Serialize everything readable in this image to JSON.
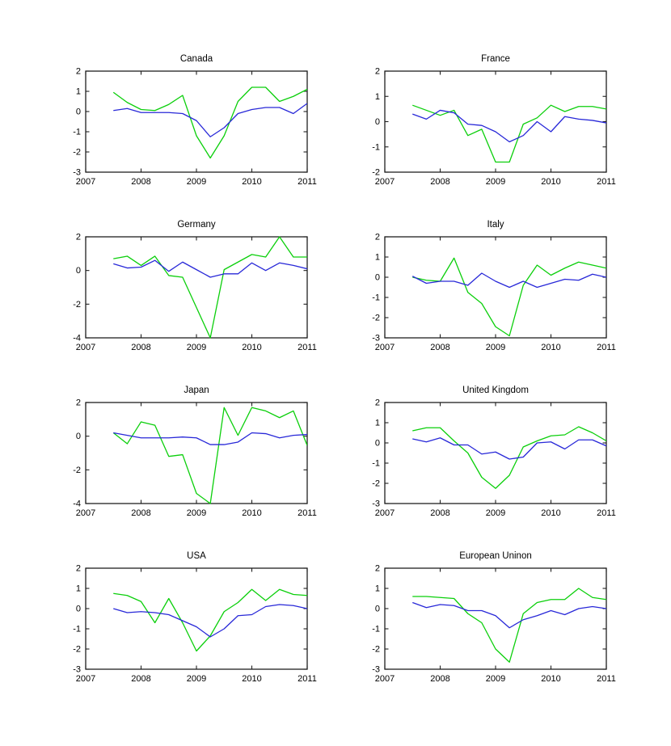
{
  "figure": {
    "background": "#ffffff",
    "axis_color": "#1f1f1f",
    "text_color": "#000000"
  },
  "chart_data": [
    {
      "type": "line",
      "title": "Canada",
      "x": [
        2007.5,
        2007.75,
        2008.0,
        2008.25,
        2008.5,
        2008.75,
        2009.0,
        2009.25,
        2009.5,
        2009.75,
        2010.0,
        2010.25,
        2010.5,
        2010.75,
        2011.0
      ],
      "xlim": [
        2007,
        2011
      ],
      "ylim": [
        -3,
        2
      ],
      "xticks": [
        2007,
        2008,
        2009,
        2010,
        2011
      ],
      "yticks": [
        -3,
        -2,
        -1,
        0,
        1,
        2
      ],
      "grid": false,
      "legend": null,
      "series": [
        {
          "name": "green-series",
          "color": "#0bcf0b",
          "values": [
            0.95,
            0.45,
            0.1,
            0.05,
            0.35,
            0.8,
            -1.2,
            -2.3,
            -1.2,
            0.5,
            1.2,
            1.2,
            0.5,
            0.75,
            1.1
          ]
        },
        {
          "name": "blue-series",
          "color": "#2828d8",
          "values": [
            0.05,
            0.15,
            -0.05,
            -0.05,
            -0.05,
            -0.1,
            -0.45,
            -1.25,
            -0.8,
            -0.1,
            0.1,
            0.2,
            0.2,
            -0.1,
            0.4
          ]
        }
      ]
    },
    {
      "type": "line",
      "title": "France",
      "x": [
        2007.5,
        2007.75,
        2008.0,
        2008.25,
        2008.5,
        2008.75,
        2009.0,
        2009.25,
        2009.5,
        2009.75,
        2010.0,
        2010.25,
        2010.5,
        2010.75,
        2011.0
      ],
      "xlim": [
        2007,
        2011
      ],
      "ylim": [
        -2,
        2
      ],
      "xticks": [
        2007,
        2008,
        2009,
        2010,
        2011
      ],
      "yticks": [
        -2,
        -1,
        0,
        1,
        2
      ],
      "grid": false,
      "legend": null,
      "series": [
        {
          "name": "green-series",
          "color": "#0bcf0b",
          "values": [
            0.65,
            0.45,
            0.25,
            0.45,
            -0.55,
            -0.3,
            -1.6,
            -1.6,
            -0.1,
            0.15,
            0.65,
            0.4,
            0.6,
            0.6,
            0.5
          ]
        },
        {
          "name": "blue-series",
          "color": "#2828d8",
          "values": [
            0.3,
            0.1,
            0.45,
            0.35,
            -0.1,
            -0.15,
            -0.4,
            -0.8,
            -0.55,
            0.0,
            -0.4,
            0.2,
            0.1,
            0.05,
            -0.05
          ]
        }
      ]
    },
    {
      "type": "line",
      "title": "Germany",
      "x": [
        2007.5,
        2007.75,
        2008.0,
        2008.25,
        2008.5,
        2008.75,
        2009.0,
        2009.25,
        2009.5,
        2009.75,
        2010.0,
        2010.25,
        2010.5,
        2010.75,
        2011.0
      ],
      "xlim": [
        2007,
        2011
      ],
      "ylim": [
        -4,
        2
      ],
      "xticks": [
        2007,
        2008,
        2009,
        2010,
        2011
      ],
      "yticks": [
        -4,
        -2,
        0,
        2
      ],
      "grid": false,
      "legend": null,
      "series": [
        {
          "name": "green-series",
          "color": "#0bcf0b",
          "values": [
            0.7,
            0.85,
            0.3,
            0.85,
            -0.3,
            -0.4,
            -2.2,
            -4.0,
            0.05,
            0.5,
            0.95,
            0.8,
            2.0,
            0.8,
            0.8
          ]
        },
        {
          "name": "blue-series",
          "color": "#2828d8",
          "values": [
            0.4,
            0.15,
            0.2,
            0.6,
            -0.05,
            0.5,
            0.05,
            -0.4,
            -0.2,
            -0.2,
            0.45,
            0.0,
            0.45,
            0.3,
            0.1
          ]
        }
      ]
    },
    {
      "type": "line",
      "title": "Italy",
      "x": [
        2007.5,
        2007.75,
        2008.0,
        2008.25,
        2008.5,
        2008.75,
        2009.0,
        2009.25,
        2009.5,
        2009.75,
        2010.0,
        2010.25,
        2010.5,
        2010.75,
        2011.0
      ],
      "xlim": [
        2007,
        2011
      ],
      "ylim": [
        -3,
        2
      ],
      "xticks": [
        2007,
        2008,
        2009,
        2010,
        2011
      ],
      "yticks": [
        -3,
        -2,
        -1,
        0,
        1,
        2
      ],
      "grid": false,
      "legend": null,
      "series": [
        {
          "name": "green-series",
          "color": "#0bcf0b",
          "values": [
            0.0,
            -0.15,
            -0.2,
            0.95,
            -0.75,
            -1.3,
            -2.45,
            -2.9,
            -0.4,
            0.6,
            0.1,
            0.45,
            0.75,
            0.6,
            0.45
          ]
        },
        {
          "name": "blue-series",
          "color": "#2828d8",
          "values": [
            0.05,
            -0.3,
            -0.2,
            -0.2,
            -0.4,
            0.2,
            -0.2,
            -0.5,
            -0.2,
            -0.5,
            -0.3,
            -0.1,
            -0.15,
            0.15,
            0.0
          ]
        }
      ]
    },
    {
      "type": "line",
      "title": "Japan",
      "x": [
        2007.5,
        2007.75,
        2008.0,
        2008.25,
        2008.5,
        2008.75,
        2009.0,
        2009.25,
        2009.5,
        2009.75,
        2010.0,
        2010.25,
        2010.5,
        2010.75,
        2011.0
      ],
      "xlim": [
        2007,
        2011
      ],
      "ylim": [
        -4,
        2
      ],
      "xticks": [
        2007,
        2008,
        2009,
        2010,
        2011
      ],
      "yticks": [
        -4,
        -2,
        0,
        2
      ],
      "grid": false,
      "legend": null,
      "series": [
        {
          "name": "green-series",
          "color": "#0bcf0b",
          "values": [
            0.2,
            -0.45,
            0.85,
            0.65,
            -1.2,
            -1.1,
            -3.4,
            -4.0,
            1.7,
            0.05,
            1.7,
            1.5,
            1.1,
            1.5,
            -0.55
          ]
        },
        {
          "name": "blue-series",
          "color": "#2828d8",
          "values": [
            0.2,
            0.05,
            -0.1,
            -0.1,
            -0.1,
            -0.05,
            -0.1,
            -0.5,
            -0.5,
            -0.35,
            0.2,
            0.15,
            -0.1,
            0.05,
            0.1
          ]
        }
      ]
    },
    {
      "type": "line",
      "title": "United Kingdom",
      "x": [
        2007.5,
        2007.75,
        2008.0,
        2008.25,
        2008.5,
        2008.75,
        2009.0,
        2009.25,
        2009.5,
        2009.75,
        2010.0,
        2010.25,
        2010.5,
        2010.75,
        2011.0
      ],
      "xlim": [
        2007,
        2011
      ],
      "ylim": [
        -3,
        2
      ],
      "xticks": [
        2007,
        2008,
        2009,
        2010,
        2011
      ],
      "yticks": [
        -3,
        -2,
        -1,
        0,
        1,
        2
      ],
      "grid": false,
      "legend": null,
      "series": [
        {
          "name": "green-series",
          "color": "#0bcf0b",
          "values": [
            0.6,
            0.75,
            0.75,
            0.1,
            -0.5,
            -1.7,
            -2.25,
            -1.6,
            -0.2,
            0.1,
            0.35,
            0.4,
            0.8,
            0.5,
            0.1
          ]
        },
        {
          "name": "blue-series",
          "color": "#2828d8",
          "values": [
            0.2,
            0.05,
            0.25,
            -0.1,
            -0.1,
            -0.55,
            -0.45,
            -0.8,
            -0.7,
            0.0,
            0.05,
            -0.3,
            0.15,
            0.15,
            -0.15
          ]
        }
      ]
    },
    {
      "type": "line",
      "title": "USA",
      "x": [
        2007.5,
        2007.75,
        2008.0,
        2008.25,
        2008.5,
        2008.75,
        2009.0,
        2009.25,
        2009.5,
        2009.75,
        2010.0,
        2010.25,
        2010.5,
        2010.75,
        2011.0
      ],
      "xlim": [
        2007,
        2011
      ],
      "ylim": [
        -3,
        2
      ],
      "xticks": [
        2007,
        2008,
        2009,
        2010,
        2011
      ],
      "yticks": [
        -3,
        -2,
        -1,
        0,
        1,
        2
      ],
      "grid": false,
      "legend": null,
      "series": [
        {
          "name": "green-series",
          "color": "#0bcf0b",
          "values": [
            0.75,
            0.65,
            0.35,
            -0.7,
            0.5,
            -0.7,
            -2.1,
            -1.35,
            -0.15,
            0.3,
            0.95,
            0.4,
            0.95,
            0.7,
            0.65
          ]
        },
        {
          "name": "blue-series",
          "color": "#2828d8",
          "values": [
            0.0,
            -0.2,
            -0.15,
            -0.2,
            -0.3,
            -0.6,
            -0.9,
            -1.4,
            -1.0,
            -0.35,
            -0.3,
            0.1,
            0.2,
            0.15,
            0.0
          ]
        }
      ]
    },
    {
      "type": "line",
      "title": "European Uninon",
      "x": [
        2007.5,
        2007.75,
        2008.0,
        2008.25,
        2008.5,
        2008.75,
        2009.0,
        2009.25,
        2009.5,
        2009.75,
        2010.0,
        2010.25,
        2010.5,
        2010.75,
        2011.0
      ],
      "xlim": [
        2007,
        2011
      ],
      "ylim": [
        -3,
        2
      ],
      "xticks": [
        2007,
        2008,
        2009,
        2010,
        2011
      ],
      "yticks": [
        -3,
        -2,
        -1,
        0,
        1,
        2
      ],
      "grid": false,
      "legend": null,
      "series": [
        {
          "name": "green-series",
          "color": "#0bcf0b",
          "values": [
            0.6,
            0.6,
            0.55,
            0.5,
            -0.25,
            -0.7,
            -2.0,
            -2.65,
            -0.25,
            0.3,
            0.45,
            0.45,
            1.0,
            0.55,
            0.45
          ]
        },
        {
          "name": "blue-series",
          "color": "#2828d8",
          "values": [
            0.3,
            0.05,
            0.2,
            0.15,
            -0.1,
            -0.1,
            -0.35,
            -0.95,
            -0.55,
            -0.35,
            -0.1,
            -0.3,
            0.0,
            0.1,
            0.0
          ]
        }
      ]
    }
  ]
}
